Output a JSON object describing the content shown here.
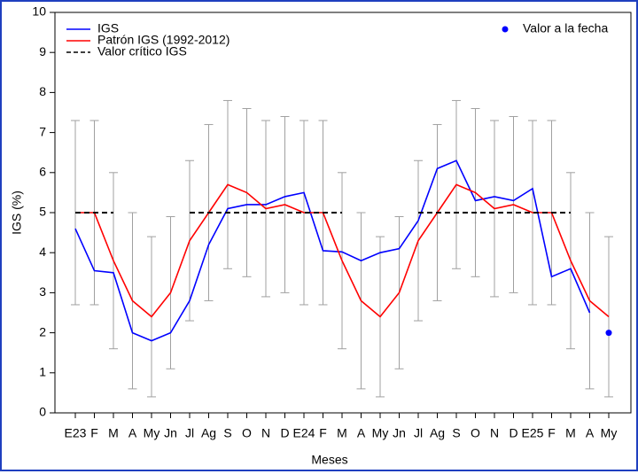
{
  "chart_data": {
    "type": "line",
    "x_label": "Meses",
    "y_label": "IGS (%)",
    "categories": [
      "E23",
      "F",
      "M",
      "A",
      "My",
      "Jn",
      "Jl",
      "Ag",
      "S",
      "O",
      "N",
      "D",
      "E24",
      "F",
      "M",
      "A",
      "My",
      "Jn",
      "Jl",
      "Ag",
      "S",
      "O",
      "N",
      "D",
      "E25",
      "F",
      "M",
      "A",
      "My"
    ],
    "ylim": [
      0,
      10
    ],
    "yticks": [
      0,
      1,
      2,
      3,
      4,
      5,
      6,
      7,
      8,
      9,
      10
    ],
    "series": [
      {
        "name": "IGS",
        "color": "#0000ff",
        "values": [
          4.6,
          3.55,
          3.5,
          2.0,
          1.8,
          2.0,
          2.8,
          4.2,
          5.1,
          5.2,
          5.2,
          5.4,
          5.5,
          4.05,
          4.02,
          3.8,
          4.0,
          4.1,
          4.8,
          6.1,
          6.3,
          5.3,
          5.4,
          5.3,
          5.6,
          3.4,
          3.6,
          2.5,
          null
        ]
      },
      {
        "name": "Patrón IGS (1992-2012)",
        "color": "#ff0000",
        "values": [
          5.0,
          5.0,
          3.8,
          2.8,
          2.4,
          3.0,
          4.3,
          5.0,
          5.7,
          5.5,
          5.1,
          5.2,
          5.0,
          5.0,
          3.8,
          2.8,
          2.4,
          3.0,
          4.3,
          5.0,
          5.7,
          5.5,
          5.1,
          5.2,
          5.0,
          5.0,
          3.8,
          2.8,
          2.4
        ],
        "error_high": [
          7.3,
          7.3,
          6.0,
          5.0,
          4.4,
          4.9,
          6.3,
          7.2,
          7.8,
          7.6,
          7.3,
          7.4,
          7.3,
          7.3,
          6.0,
          5.0,
          4.4,
          4.9,
          6.3,
          7.2,
          7.8,
          7.6,
          7.3,
          7.4,
          7.3,
          7.3,
          6.0,
          5.0,
          4.4
        ],
        "error_low": [
          2.7,
          2.7,
          1.6,
          0.6,
          0.4,
          1.1,
          2.3,
          2.8,
          3.6,
          3.4,
          2.9,
          3.0,
          2.7,
          2.7,
          1.6,
          0.6,
          0.4,
          1.1,
          2.3,
          2.8,
          3.6,
          3.4,
          2.9,
          3.0,
          2.7,
          2.7,
          1.6,
          0.6,
          0.4
        ],
        "error_color": "#a0a0a0"
      },
      {
        "name": "Valor crítico IGS",
        "color": "#000000",
        "dashed": true,
        "values": [
          5,
          5,
          5,
          null,
          null,
          null,
          5,
          5,
          5,
          5,
          5,
          5,
          5,
          5,
          5,
          null,
          null,
          null,
          5,
          5,
          5,
          5,
          5,
          5,
          5,
          5,
          5,
          null,
          null
        ]
      },
      {
        "name": "Valor a la fecha",
        "color": "#0000ff",
        "marker": true,
        "values": [
          null,
          null,
          null,
          null,
          null,
          null,
          null,
          null,
          null,
          null,
          null,
          null,
          null,
          null,
          null,
          null,
          null,
          null,
          null,
          null,
          null,
          null,
          null,
          null,
          null,
          null,
          null,
          null,
          2.0
        ]
      }
    ]
  }
}
